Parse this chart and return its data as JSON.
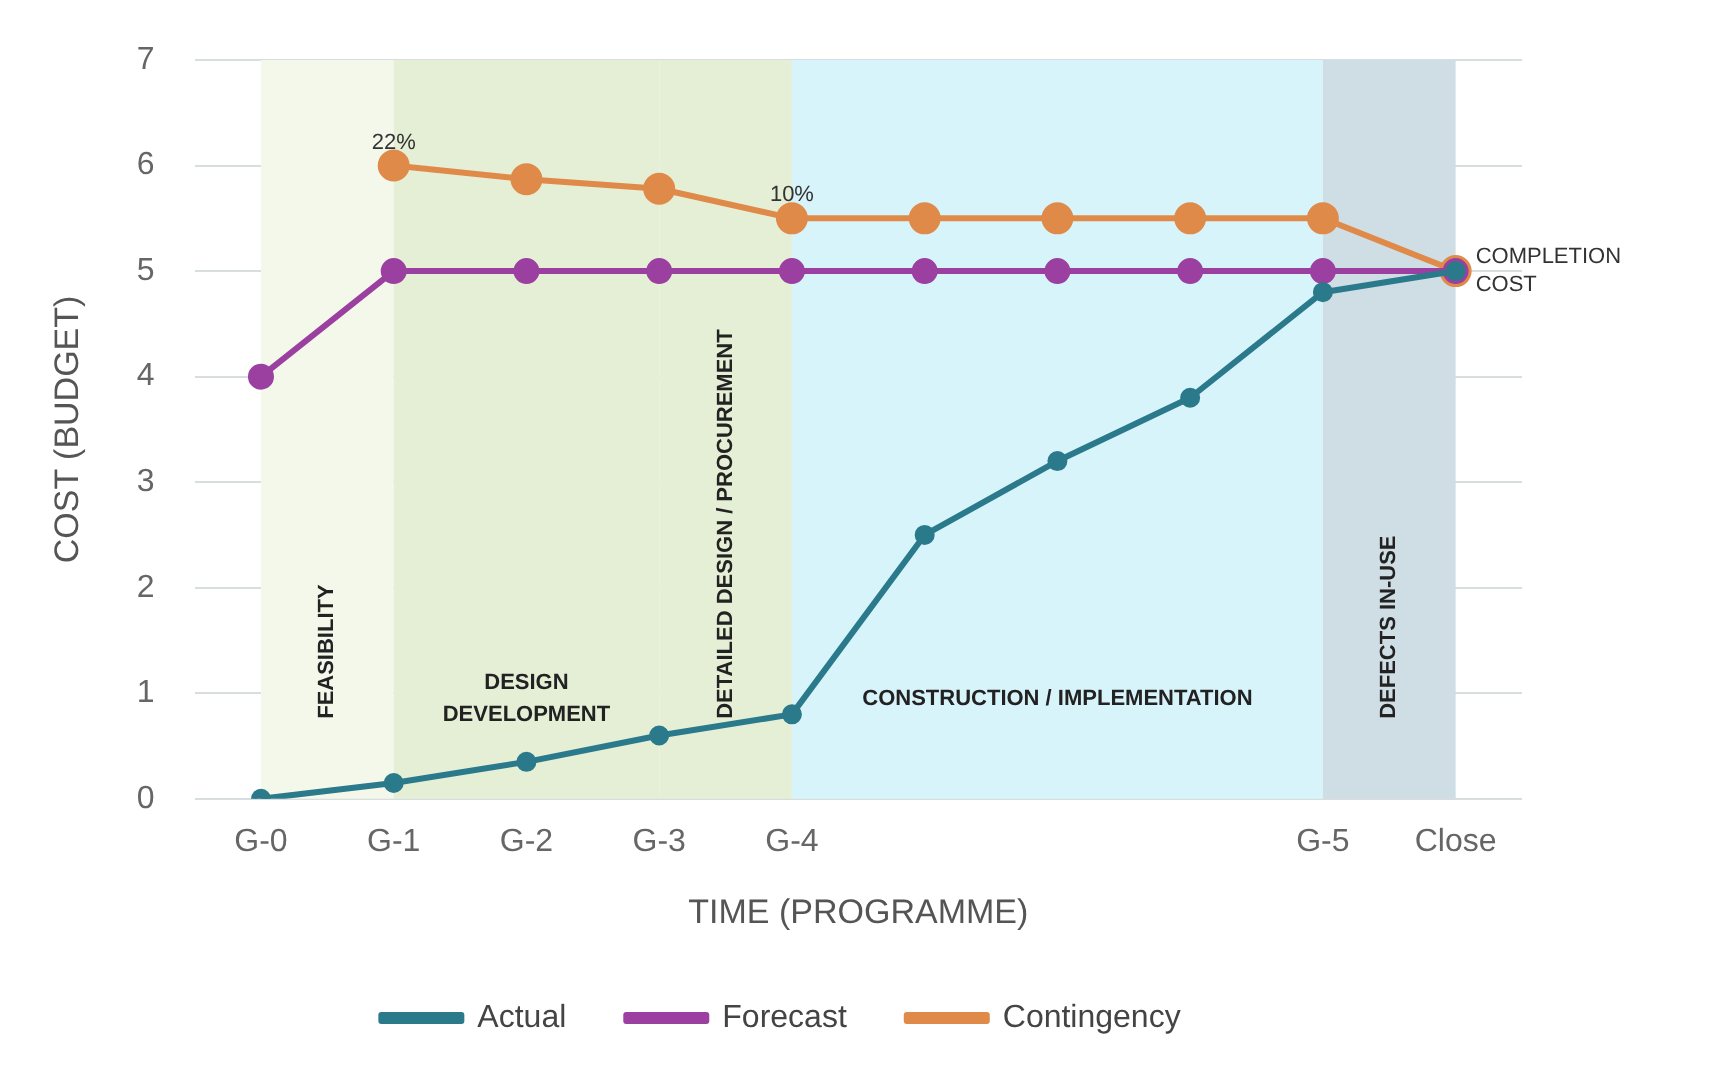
{
  "chart_data": {
    "type": "line",
    "xlabel": "TIME (PROGRAMME)",
    "ylabel": "COST (BUDGET)",
    "categories": [
      "G-0",
      "G-1",
      "G-2",
      "G-3",
      "G-4",
      null,
      null,
      null,
      "G-5",
      "Close"
    ],
    "series": [
      {
        "name": "Actual",
        "color": "#2b7a8c",
        "values": [
          0,
          0.15,
          0.35,
          0.6,
          0.8,
          2.5,
          3.2,
          3.8,
          4.8,
          5.0
        ]
      },
      {
        "name": "Forecast",
        "color": "#9b3fa0",
        "values": [
          4,
          5,
          5,
          5,
          5,
          5,
          5,
          5,
          5,
          5
        ]
      },
      {
        "name": "Contingency",
        "color": "#e08a4a",
        "values": [
          null,
          6.0,
          5.87,
          5.78,
          5.5,
          5.5,
          5.5,
          5.5,
          5.5,
          5.0
        ]
      }
    ],
    "ylim": [
      0,
      7
    ],
    "yticks": [
      0,
      1,
      2,
      3,
      4,
      5,
      6,
      7
    ],
    "grid": "y",
    "legend": "bottom",
    "marker": "circle",
    "line_style": "solid",
    "bands": [
      {
        "axis": "x",
        "from": "G-0",
        "to": "G-1",
        "label": "FEASIBILITY",
        "color": "#f3f8ea"
      },
      {
        "axis": "x",
        "from": "G-1",
        "to": "G-3",
        "label": "DESIGN DEVELOPMENT",
        "color": "#e5efd6"
      },
      {
        "axis": "x",
        "from": "G-3",
        "to": "G-4",
        "label": "DETAILED DESIGN / PROCUREMENT",
        "color": "#e5efd6"
      },
      {
        "axis": "x",
        "from": "G-4",
        "to": "G-5",
        "label": "CONSTRUCTION / IMPLEMENTATION",
        "color": "#d8f4fb"
      },
      {
        "axis": "x",
        "from": "G-5",
        "to": "Close",
        "label": "DEFECTS IN-USE",
        "color": "#cfdde4"
      }
    ],
    "annotations": [
      {
        "text": "22%",
        "x": "G-1",
        "y": 6.0
      },
      {
        "text": "10%",
        "x": "G-4",
        "y": 5.5
      },
      {
        "text": "COMPLETION COST",
        "x": "Close",
        "y": 5.0
      }
    ]
  }
}
